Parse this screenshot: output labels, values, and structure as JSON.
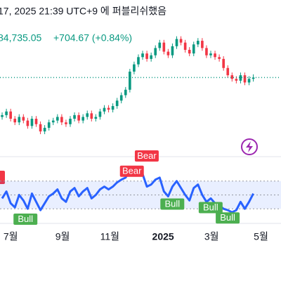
{
  "header": {
    "published": "17, 2025 21:39 UTC+9 에 퍼블리쉬했음",
    "price": "84,735.05",
    "change": "+704.67 (+0.84%)"
  },
  "chart_data": {
    "type": "candlestick",
    "up_color": "#089981",
    "down_color": "#f23645",
    "xlim": [
      -0.5,
      65.5
    ],
    "ylim": [
      50000,
      112000
    ],
    "price_line": 84735.05,
    "xticks": [
      {
        "value": 2,
        "label": "7월"
      },
      {
        "value": 14.2,
        "label": "9월"
      },
      {
        "value": 25.3,
        "label": "11월"
      },
      {
        "value": 37.8,
        "label": "2025"
      },
      {
        "value": 49.2,
        "label": "3월"
      },
      {
        "value": 60.8,
        "label": "5월"
      }
    ],
    "candles": [
      [
        63000,
        65500,
        61500,
        64000
      ],
      [
        64000,
        67500,
        62500,
        66000
      ],
      [
        66000,
        67500,
        60500,
        62000
      ],
      [
        62000,
        63500,
        58500,
        60000
      ],
      [
        60000,
        64500,
        58500,
        63000
      ],
      [
        63000,
        64500,
        59500,
        61000
      ],
      [
        61000,
        62500,
        56500,
        58000
      ],
      [
        58000,
        63500,
        56500,
        62000
      ],
      [
        62000,
        63500,
        57500,
        59000
      ],
      [
        59000,
        60500,
        53500,
        55000
      ],
      [
        55000,
        58500,
        53500,
        57000
      ],
      [
        57000,
        61500,
        55500,
        60000
      ],
      [
        60000,
        62500,
        58500,
        61000
      ],
      [
        61000,
        64500,
        59500,
        63000
      ],
      [
        63000,
        64500,
        58500,
        60000
      ],
      [
        60000,
        61500,
        57500,
        59000
      ],
      [
        59000,
        63500,
        57500,
        62000
      ],
      [
        62000,
        65500,
        60500,
        64000
      ],
      [
        64000,
        65500,
        59500,
        61000
      ],
      [
        61000,
        64500,
        59500,
        63000
      ],
      [
        63000,
        66500,
        61500,
        65000
      ],
      [
        65000,
        66500,
        60500,
        62000
      ],
      [
        62000,
        64500,
        60500,
        63000
      ],
      [
        63000,
        67500,
        61500,
        66000
      ],
      [
        66000,
        69500,
        64500,
        68000
      ],
      [
        68000,
        69500,
        65500,
        67000
      ],
      [
        67000,
        70500,
        65500,
        69000
      ],
      [
        69000,
        73500,
        67500,
        72000
      ],
      [
        72000,
        76500,
        70500,
        75000
      ],
      [
        75000,
        79500,
        73500,
        78000
      ],
      [
        78000,
        89500,
        76500,
        88000
      ],
      [
        88000,
        93500,
        86500,
        92000
      ],
      [
        92000,
        97500,
        90500,
        96000
      ],
      [
        96000,
        99500,
        94500,
        98000
      ],
      [
        98000,
        99500,
        93500,
        95000
      ],
      [
        95000,
        98500,
        93500,
        97000
      ],
      [
        97000,
        102500,
        95500,
        101000
      ],
      [
        101000,
        105500,
        99500,
        104000
      ],
      [
        104000,
        105500,
        97500,
        99000
      ],
      [
        99000,
        100500,
        95500,
        97000
      ],
      [
        97000,
        103500,
        95500,
        102000
      ],
      [
        102000,
        107500,
        100500,
        106000
      ],
      [
        106000,
        107500,
        102500,
        104000
      ],
      [
        104000,
        105500,
        98500,
        100000
      ],
      [
        100000,
        101500,
        96500,
        98000
      ],
      [
        98000,
        104500,
        96500,
        103000
      ],
      [
        103000,
        106500,
        101500,
        105000
      ],
      [
        105000,
        106500,
        99500,
        101000
      ],
      [
        101000,
        102500,
        95500,
        97000
      ],
      [
        97000,
        99500,
        95500,
        98000
      ],
      [
        98000,
        99500,
        94500,
        96000
      ],
      [
        96000,
        97500,
        93500,
        95000
      ],
      [
        95000,
        96500,
        88500,
        90000
      ],
      [
        90000,
        91500,
        84500,
        86000
      ],
      [
        86000,
        87500,
        82500,
        84000
      ],
      [
        84000,
        85500,
        81500,
        83000
      ],
      [
        83000,
        87500,
        81500,
        86000
      ],
      [
        86000,
        87500,
        80500,
        82000
      ],
      [
        82000,
        85500,
        80500,
        84000
      ],
      [
        84000,
        86500,
        82500,
        84735.05
      ]
    ],
    "rsi": {
      "color": "#2962ff",
      "ylim": [
        15,
        88
      ],
      "levels": [
        70,
        50,
        30
      ],
      "values": [
        45,
        55,
        38,
        32,
        50,
        42,
        30,
        52,
        40,
        28,
        38,
        48,
        52,
        58,
        45,
        40,
        55,
        60,
        48,
        55,
        60,
        45,
        50,
        58,
        62,
        58,
        62,
        68,
        72,
        75,
        85,
        82,
        84,
        80,
        62,
        65,
        72,
        75,
        55,
        48,
        62,
        70,
        60,
        50,
        42,
        60,
        65,
        50,
        40,
        45,
        38,
        35,
        30,
        28,
        25,
        28,
        40,
        30,
        40,
        52
      ]
    },
    "signals": [
      {
        "label": "Bull",
        "at": 3,
        "kind": "bull"
      },
      {
        "label": "Bear",
        "at": 28,
        "kind": "bear"
      },
      {
        "label": "Bear",
        "at": 31.5,
        "kind": "bear"
      },
      {
        "label": "Bull",
        "at": 37.5,
        "kind": "bull"
      },
      {
        "label": "Bull",
        "at": 46.5,
        "kind": "bull"
      },
      {
        "label": "Bull",
        "at": 50.5,
        "kind": "bull"
      }
    ]
  }
}
